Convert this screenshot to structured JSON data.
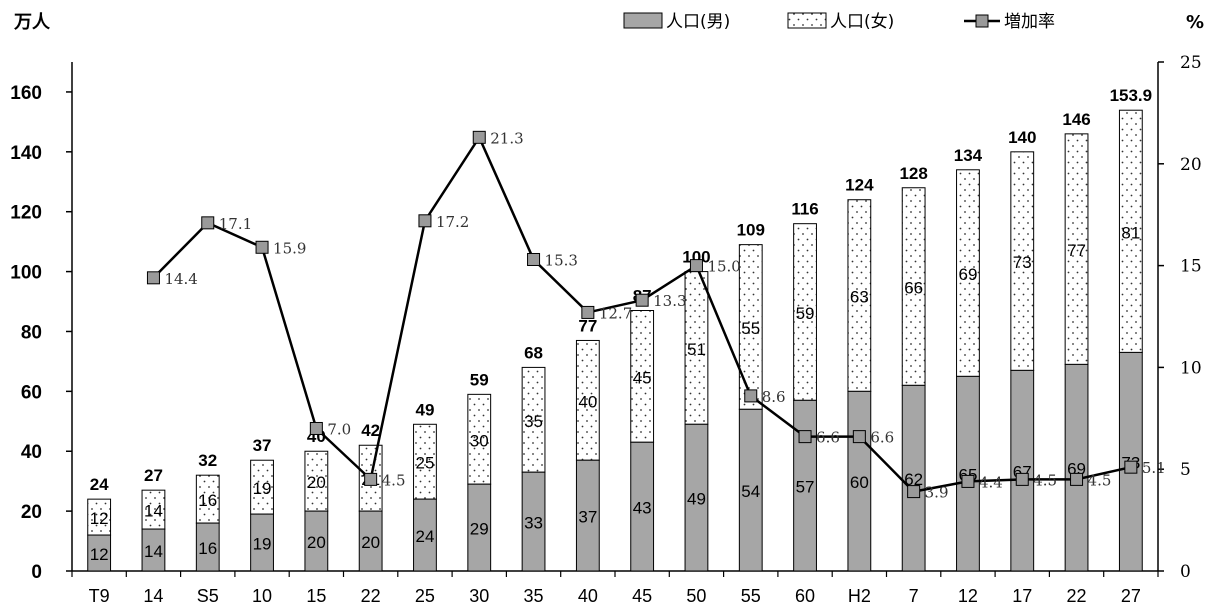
{
  "chart_data": {
    "type": "bar+line",
    "y_left_unit": "万人",
    "y_right_unit": "%",
    "y_left_ticks": [
      "0",
      "20",
      "40",
      "60",
      "80",
      "100",
      "120",
      "140",
      "160"
    ],
    "y_right_ticks": [
      "0",
      "5",
      "10",
      "15",
      "20",
      "25"
    ],
    "ylim_left": [
      0,
      170
    ],
    "ylim_right": [
      0,
      25
    ],
    "grid": false,
    "legend_position": "top-right",
    "categories": [
      "T9",
      "14",
      "S5",
      "10",
      "15",
      "22",
      "25",
      "30",
      "35",
      "40",
      "45",
      "50",
      "55",
      "60",
      "H2",
      "7",
      "12",
      "17",
      "22",
      "27"
    ],
    "totals": [
      "24",
      "27",
      "32",
      "37",
      "40",
      "42",
      "49",
      "59",
      "68",
      "77",
      "87",
      "100",
      "109",
      "116",
      "124",
      "128",
      "134",
      "140",
      "146",
      "153.9"
    ],
    "total_values": [
      24,
      27,
      32,
      37,
      40,
      42,
      49,
      59,
      68,
      77,
      87,
      100,
      109,
      116,
      124,
      128,
      134,
      140,
      146,
      153.9
    ],
    "series": [
      {
        "name": "人口(男)",
        "kind": "bar",
        "color": "#a6a6a6",
        "values": [
          12,
          14,
          16,
          19,
          20,
          20,
          24,
          29,
          33,
          37,
          43,
          49,
          54,
          57,
          60,
          62,
          65,
          67,
          69,
          73
        ]
      },
      {
        "name": "人口(女)",
        "kind": "bar",
        "pattern": "dotted",
        "color": "#ffffff",
        "values": [
          12,
          14,
          16,
          19,
          20,
          21,
          25,
          30,
          35,
          40,
          45,
          51,
          55,
          59,
          63,
          66,
          69,
          73,
          77,
          81
        ]
      },
      {
        "name": "増加率",
        "kind": "line",
        "axis": "right",
        "color": "#000000",
        "values": [
          null,
          14.4,
          17.1,
          15.9,
          7.0,
          4.5,
          17.2,
          21.3,
          15.3,
          12.7,
          13.3,
          15.0,
          8.6,
          6.6,
          6.6,
          3.9,
          4.4,
          4.5,
          4.5,
          5.1
        ],
        "labels": [
          null,
          "14.4",
          "17.1",
          "15.9",
          "7.0",
          "4.5",
          "17.2",
          "21.3",
          "15.3",
          "12.7",
          "13.3",
          "15.0",
          "8.6",
          "6.6",
          "6.6",
          "3.9",
          "4.4",
          "4.5",
          "4.5",
          "5.1"
        ]
      }
    ]
  }
}
